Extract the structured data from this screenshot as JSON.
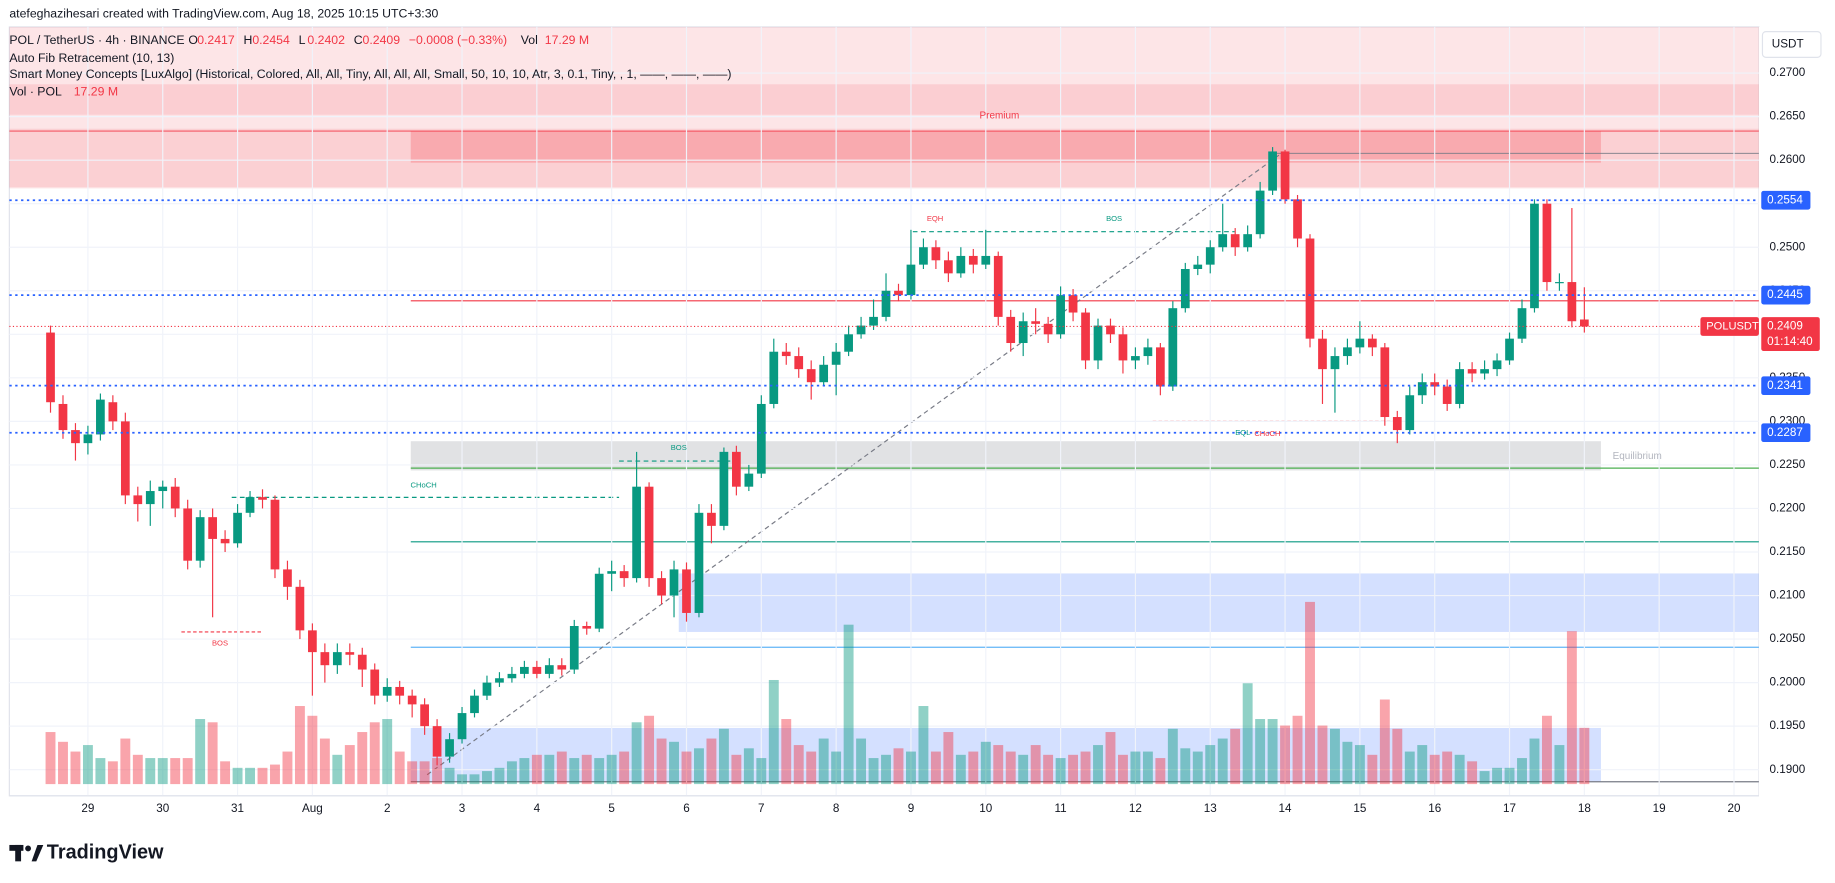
{
  "caption": "atefeghazihesari created with TradingView.com, Aug 18, 2025 10:15 UTC+3:30",
  "brand": "TradingView",
  "chart_data": {
    "type": "candlestick",
    "legend": {
      "symbol": "POL / TetherUS · 4h · BINANCE",
      "fields": [
        {
          "key": "O",
          "value": "0.2417"
        },
        {
          "key": "H",
          "value": "0.2454"
        },
        {
          "key": "L",
          "value": "0.2402"
        },
        {
          "key": "C",
          "value": "0.2409"
        },
        {
          "key": "",
          "value": "−0.0008 (−0.33%)"
        },
        {
          "key": "Vol",
          "value": "17.29 M"
        }
      ],
      "indicators": [
        "Auto Fib Retracement (10, 13)",
        "Smart Money Concepts [LuxAlgo] (Historical, Colored, All, All, Tiny, All, All, All, Small, 50, 10, 10, Atr, 3, 0.1, Tiny, , 1, ——, ——, ——)"
      ],
      "volume_name": "Vol · POL",
      "volume_value": "17.29 M"
    },
    "currency": "USDT",
    "up_color": "#089981",
    "down_color": "#f23645",
    "ohlc": [
      [
        0.2402,
        0.241,
        0.231,
        0.2322
      ],
      [
        0.232,
        0.233,
        0.228,
        0.229
      ],
      [
        0.229,
        0.2298,
        0.2255,
        0.2275
      ],
      [
        0.2275,
        0.2295,
        0.2262,
        0.2285
      ],
      [
        0.2285,
        0.2332,
        0.2278,
        0.2325
      ],
      [
        0.2322,
        0.233,
        0.229,
        0.23
      ],
      [
        0.23,
        0.231,
        0.2205,
        0.2215
      ],
      [
        0.2215,
        0.2225,
        0.2185,
        0.2205
      ],
      [
        0.2205,
        0.2232,
        0.218,
        0.222
      ],
      [
        0.222,
        0.2232,
        0.22,
        0.2225
      ],
      [
        0.2225,
        0.2235,
        0.219,
        0.22
      ],
      [
        0.22,
        0.221,
        0.213,
        0.214
      ],
      [
        0.214,
        0.2198,
        0.2132,
        0.219
      ],
      [
        0.219,
        0.22,
        0.2075,
        0.2165
      ],
      [
        0.2165,
        0.2175,
        0.215,
        0.216
      ],
      [
        0.216,
        0.2205,
        0.2155,
        0.2195
      ],
      [
        0.2195,
        0.222,
        0.219,
        0.2213
      ],
      [
        0.2213,
        0.2222,
        0.22,
        0.221
      ],
      [
        0.221,
        0.2215,
        0.212,
        0.213
      ],
      [
        0.213,
        0.214,
        0.2095,
        0.211
      ],
      [
        0.211,
        0.2118,
        0.205,
        0.206
      ],
      [
        0.206,
        0.2068,
        0.1985,
        0.2035
      ],
      [
        0.2035,
        0.2045,
        0.2,
        0.202
      ],
      [
        0.202,
        0.2045,
        0.201,
        0.2035
      ],
      [
        0.2035,
        0.2045,
        0.202,
        0.2032
      ],
      [
        0.2032,
        0.204,
        0.1995,
        0.2015
      ],
      [
        0.2015,
        0.2022,
        0.1975,
        0.1985
      ],
      [
        0.1985,
        0.2005,
        0.1978,
        0.1995
      ],
      [
        0.1995,
        0.2002,
        0.1975,
        0.1985
      ],
      [
        0.1985,
        0.1992,
        0.196,
        0.1975
      ],
      [
        0.1975,
        0.1982,
        0.194,
        0.195
      ],
      [
        0.195,
        0.1958,
        0.1905,
        0.1915
      ],
      [
        0.1915,
        0.1942,
        0.1908,
        0.1935
      ],
      [
        0.1935,
        0.1972,
        0.193,
        0.1965
      ],
      [
        0.1965,
        0.1992,
        0.196,
        0.1985
      ],
      [
        0.1985,
        0.2008,
        0.198,
        0.2
      ],
      [
        0.2,
        0.2012,
        0.1995,
        0.2005
      ],
      [
        0.2005,
        0.2018,
        0.2,
        0.201
      ],
      [
        0.201,
        0.2025,
        0.2005,
        0.2018
      ],
      [
        0.2018,
        0.2025,
        0.2005,
        0.201
      ],
      [
        0.201,
        0.2028,
        0.2005,
        0.202
      ],
      [
        0.202,
        0.2028,
        0.2008,
        0.2015
      ],
      [
        0.2015,
        0.2072,
        0.201,
        0.2065
      ],
      [
        0.2065,
        0.207,
        0.2055,
        0.2062
      ],
      [
        0.2062,
        0.2132,
        0.2058,
        0.2125
      ],
      [
        0.2125,
        0.214,
        0.2105,
        0.2128
      ],
      [
        0.2128,
        0.2135,
        0.211,
        0.212
      ],
      [
        0.212,
        0.2265,
        0.2115,
        0.2225
      ],
      [
        0.2225,
        0.223,
        0.211,
        0.212
      ],
      [
        0.212,
        0.2128,
        0.209,
        0.21
      ],
      [
        0.21,
        0.214,
        0.2075,
        0.213
      ],
      [
        0.213,
        0.2138,
        0.207,
        0.208
      ],
      [
        0.208,
        0.2205,
        0.2075,
        0.2195
      ],
      [
        0.2195,
        0.2205,
        0.216,
        0.218
      ],
      [
        0.218,
        0.227,
        0.2175,
        0.2265
      ],
      [
        0.2265,
        0.2272,
        0.2215,
        0.2225
      ],
      [
        0.2225,
        0.225,
        0.222,
        0.224
      ],
      [
        0.224,
        0.233,
        0.2235,
        0.232
      ],
      [
        0.232,
        0.2395,
        0.2315,
        0.238
      ],
      [
        0.238,
        0.239,
        0.2365,
        0.2375
      ],
      [
        0.2375,
        0.2385,
        0.235,
        0.236
      ],
      [
        0.236,
        0.237,
        0.2325,
        0.2345
      ],
      [
        0.2345,
        0.2375,
        0.234,
        0.2365
      ],
      [
        0.2365,
        0.239,
        0.233,
        0.238
      ],
      [
        0.238,
        0.241,
        0.2375,
        0.24
      ],
      [
        0.24,
        0.242,
        0.2395,
        0.241
      ],
      [
        0.241,
        0.244,
        0.2405,
        0.242
      ],
      [
        0.242,
        0.247,
        0.2415,
        0.245
      ],
      [
        0.245,
        0.2458,
        0.2438,
        0.2445
      ],
      [
        0.2445,
        0.252,
        0.244,
        0.248
      ],
      [
        0.248,
        0.251,
        0.2475,
        0.25
      ],
      [
        0.25,
        0.2508,
        0.2475,
        0.2485
      ],
      [
        0.2485,
        0.2495,
        0.246,
        0.247
      ],
      [
        0.247,
        0.25,
        0.2465,
        0.249
      ],
      [
        0.249,
        0.2498,
        0.247,
        0.248
      ],
      [
        0.248,
        0.252,
        0.2475,
        0.249
      ],
      [
        0.249,
        0.2495,
        0.241,
        0.242
      ],
      [
        0.242,
        0.2428,
        0.238,
        0.239
      ],
      [
        0.239,
        0.2425,
        0.2375,
        0.2415
      ],
      [
        0.2415,
        0.243,
        0.24,
        0.2412
      ],
      [
        0.2412,
        0.242,
        0.239,
        0.24
      ],
      [
        0.24,
        0.2455,
        0.2395,
        0.2445
      ],
      [
        0.2445,
        0.2452,
        0.2415,
        0.2425
      ],
      [
        0.2425,
        0.243,
        0.236,
        0.237
      ],
      [
        0.237,
        0.2418,
        0.236,
        0.241
      ],
      [
        0.241,
        0.2418,
        0.239,
        0.24
      ],
      [
        0.24,
        0.2408,
        0.2355,
        0.237
      ],
      [
        0.237,
        0.2385,
        0.236,
        0.2375
      ],
      [
        0.2375,
        0.2395,
        0.2365,
        0.2385
      ],
      [
        0.2385,
        0.239,
        0.233,
        0.234
      ],
      [
        0.234,
        0.2438,
        0.2335,
        0.243
      ],
      [
        0.243,
        0.2482,
        0.2425,
        0.2475
      ],
      [
        0.2475,
        0.249,
        0.2468,
        0.248
      ],
      [
        0.248,
        0.2508,
        0.247,
        0.25
      ],
      [
        0.25,
        0.255,
        0.2495,
        0.2515
      ],
      [
        0.2515,
        0.2522,
        0.249,
        0.25
      ],
      [
        0.25,
        0.2525,
        0.2495,
        0.2515
      ],
      [
        0.2515,
        0.2575,
        0.251,
        0.2565
      ],
      [
        0.2565,
        0.2615,
        0.256,
        0.261
      ],
      [
        0.261,
        0.2612,
        0.255,
        0.2555
      ],
      [
        0.2555,
        0.256,
        0.25,
        0.251
      ],
      [
        0.251,
        0.2515,
        0.2385,
        0.2395
      ],
      [
        0.2395,
        0.2405,
        0.232,
        0.236
      ],
      [
        0.236,
        0.2385,
        0.231,
        0.2375
      ],
      [
        0.2375,
        0.2395,
        0.2365,
        0.2385
      ],
      [
        0.2385,
        0.2415,
        0.2378,
        0.2395
      ],
      [
        0.2395,
        0.24,
        0.2375,
        0.2385
      ],
      [
        0.2385,
        0.239,
        0.2295,
        0.2305
      ],
      [
        0.2305,
        0.2312,
        0.2275,
        0.229
      ],
      [
        0.229,
        0.234,
        0.2285,
        0.233
      ],
      [
        0.233,
        0.2355,
        0.232,
        0.2345
      ],
      [
        0.2345,
        0.2355,
        0.233,
        0.234
      ],
      [
        0.234,
        0.2348,
        0.2312,
        0.232
      ],
      [
        0.232,
        0.2368,
        0.2315,
        0.236
      ],
      [
        0.236,
        0.2368,
        0.2345,
        0.2355
      ],
      [
        0.2355,
        0.237,
        0.2348,
        0.236
      ],
      [
        0.236,
        0.2378,
        0.2352,
        0.237
      ],
      [
        0.237,
        0.2402,
        0.2365,
        0.2395
      ],
      [
        0.2395,
        0.244,
        0.239,
        0.243
      ],
      [
        0.243,
        0.2555,
        0.2425,
        0.255
      ],
      [
        0.255,
        0.2555,
        0.245,
        0.246
      ],
      [
        0.246,
        0.247,
        0.245,
        0.246
      ],
      [
        0.246,
        0.2545,
        0.2408,
        0.2415
      ],
      [
        0.2417,
        0.2454,
        0.2402,
        0.2409
      ]
    ],
    "volume": [
      16,
      13,
      10,
      12,
      8,
      7,
      14,
      9,
      8,
      8,
      8,
      8,
      20,
      19,
      7,
      5,
      5,
      5,
      6,
      10,
      24,
      21,
      14,
      9,
      12,
      16,
      19,
      20,
      10,
      7,
      7,
      8,
      5,
      3,
      3,
      4,
      5,
      7,
      8,
      9,
      9,
      10,
      8,
      9,
      8,
      9,
      10,
      19,
      21,
      14,
      13,
      10,
      11,
      14,
      17,
      9,
      11,
      8,
      32,
      20,
      12,
      10,
      14,
      10,
      49,
      14,
      8,
      9,
      11,
      10,
      24,
      10,
      16,
      9,
      10,
      13,
      12,
      10,
      9,
      12,
      9,
      8,
      9,
      10,
      12,
      16,
      9,
      10,
      10,
      8,
      17,
      11,
      10,
      12,
      14,
      17,
      31,
      20,
      20,
      18,
      21,
      56,
      18,
      17,
      13,
      12,
      9,
      26,
      17,
      10,
      12,
      9,
      10,
      9,
      7,
      4,
      5,
      5,
      8,
      14,
      21,
      12,
      47,
      17.29
    ],
    "ylim": [
      0.187,
      0.2753
    ],
    "yticks": [
      {
        "value": 0.19,
        "label": "0.1900"
      },
      {
        "value": 0.195,
        "label": "0.1950"
      },
      {
        "value": 0.2,
        "label": "0.2000"
      },
      {
        "value": 0.205,
        "label": "0.2050"
      },
      {
        "value": 0.21,
        "label": "0.2100"
      },
      {
        "value": 0.215,
        "label": "0.2150"
      },
      {
        "value": 0.22,
        "label": "0.2200"
      },
      {
        "value": 0.225,
        "label": "0.2250"
      },
      {
        "value": 0.23,
        "label": "0.2300"
      },
      {
        "value": 0.235,
        "label": "0.2350"
      },
      {
        "value": 0.24,
        "label": "0.2400"
      },
      {
        "value": 0.245,
        "label": "0.2450"
      },
      {
        "value": 0.25,
        "label": "0.2500"
      },
      {
        "value": 0.255,
        "label": "0.2550"
      },
      {
        "value": 0.26,
        "label": "0.2600"
      },
      {
        "value": 0.265,
        "label": "0.2650"
      },
      {
        "value": 0.27,
        "label": "0.2700"
      }
    ],
    "xlim": [
      -3.3,
      137
    ],
    "xticks": [
      {
        "value": 3,
        "label": "29"
      },
      {
        "value": 9,
        "label": "30"
      },
      {
        "value": 15,
        "label": "31"
      },
      {
        "value": 21,
        "label": "Aug"
      },
      {
        "value": 27,
        "label": "2"
      },
      {
        "value": 33,
        "label": "3"
      },
      {
        "value": 39,
        "label": "4"
      },
      {
        "value": 45,
        "label": "5"
      },
      {
        "value": 51,
        "label": "6"
      },
      {
        "value": 57,
        "label": "7"
      },
      {
        "value": 63,
        "label": "8"
      },
      {
        "value": 69,
        "label": "9"
      },
      {
        "value": 75,
        "label": "10"
      },
      {
        "value": 81,
        "label": "11"
      },
      {
        "value": 87,
        "label": "12"
      },
      {
        "value": 93,
        "label": "13"
      },
      {
        "value": 99,
        "label": "14"
      },
      {
        "value": 105,
        "label": "15"
      },
      {
        "value": 111,
        "label": "16"
      },
      {
        "value": 117,
        "label": "17"
      },
      {
        "value": 123,
        "label": "18"
      },
      {
        "value": 129,
        "label": "19"
      },
      {
        "value": 135,
        "label": "20"
      }
    ],
    "levels": [
      0.2554,
      0.2445,
      0.2341,
      0.2287
    ],
    "last_price": {
      "name": "POLUSDT",
      "value": 0.2409,
      "countdown": "01:14:40"
    },
    "annotations": [
      "Premium",
      "Equilibrium",
      "EQH",
      "BOS",
      "CHoCH",
      "BOS",
      "BOS",
      "EQL",
      "CHoCH"
    ]
  }
}
